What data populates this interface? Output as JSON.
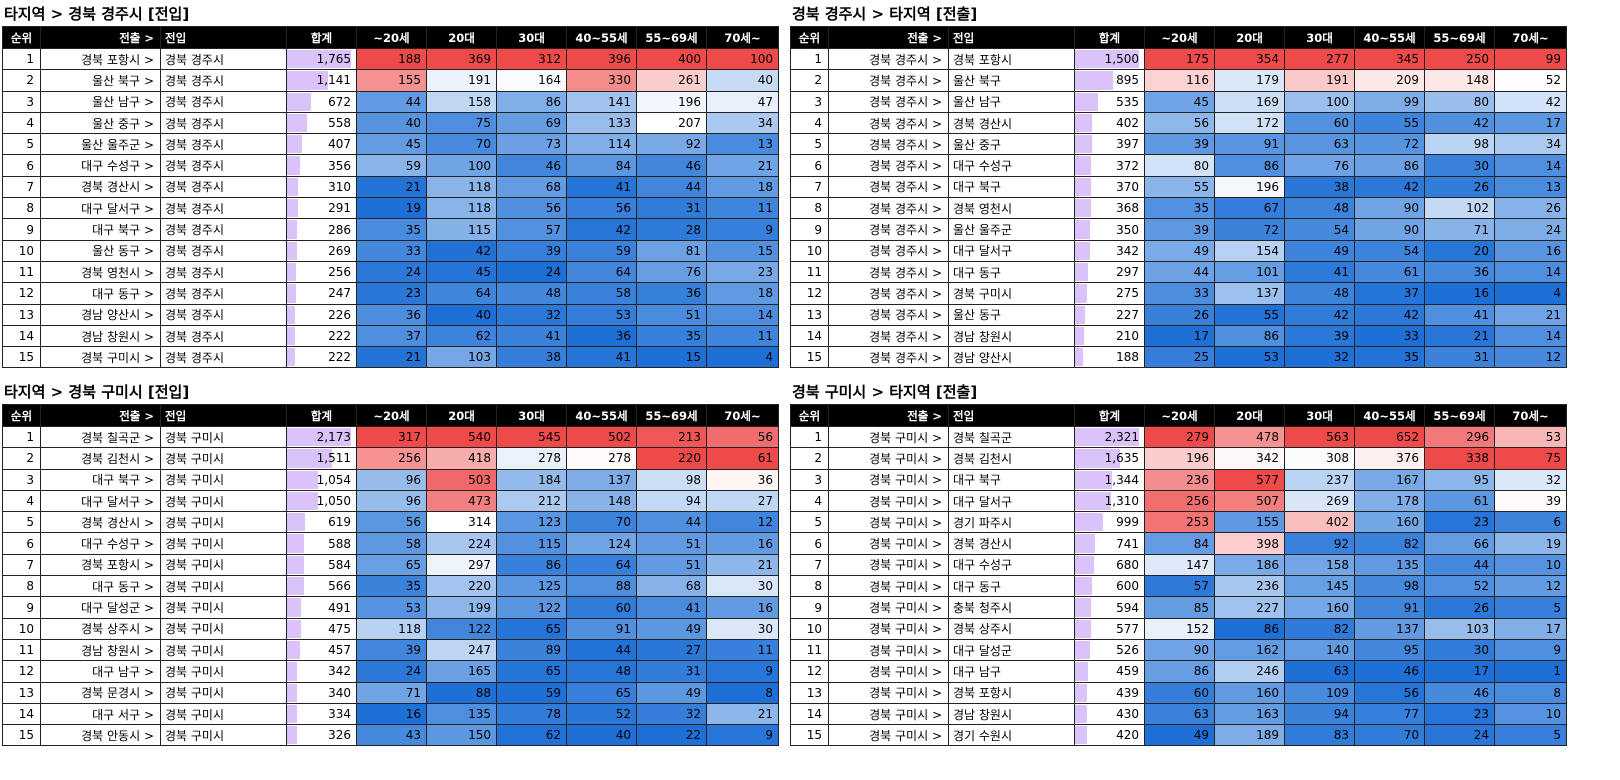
{
  "columns": {
    "rank": "순위",
    "from": "전출 >",
    "to": "전입",
    "total": "합계",
    "ages": [
      "~20세",
      "20대",
      "30대",
      "40~55세",
      "55~69세",
      "70세~"
    ]
  },
  "arrow": ">",
  "panels": [
    {
      "title": "타지역 > 경북 경주시 [전입]",
      "rows": [
        [
          "1",
          "경북 포항시",
          "경북 경주시",
          1765,
          [
            188,
            369,
            312,
            396,
            400,
            100
          ]
        ],
        [
          "2",
          "울산 북구",
          "경북 경주시",
          1141,
          [
            155,
            191,
            164,
            330,
            261,
            40
          ]
        ],
        [
          "3",
          "울산 남구",
          "경북 경주시",
          672,
          [
            44,
            158,
            86,
            141,
            196,
            47
          ]
        ],
        [
          "4",
          "울산 중구",
          "경북 경주시",
          558,
          [
            40,
            75,
            69,
            133,
            207,
            34
          ]
        ],
        [
          "5",
          "울산 울주군",
          "경북 경주시",
          407,
          [
            45,
            70,
            73,
            114,
            92,
            13
          ]
        ],
        [
          "6",
          "대구 수성구",
          "경북 경주시",
          356,
          [
            59,
            100,
            46,
            84,
            46,
            21
          ]
        ],
        [
          "7",
          "경북 경산시",
          "경북 경주시",
          310,
          [
            21,
            118,
            68,
            41,
            44,
            18
          ]
        ],
        [
          "8",
          "대구 달서구",
          "경북 경주시",
          291,
          [
            19,
            118,
            56,
            56,
            31,
            11
          ]
        ],
        [
          "9",
          "대구 북구",
          "경북 경주시",
          286,
          [
            35,
            115,
            57,
            42,
            28,
            9
          ]
        ],
        [
          "10",
          "울산 동구",
          "경북 경주시",
          269,
          [
            33,
            42,
            39,
            59,
            81,
            15
          ]
        ],
        [
          "11",
          "경북 영천시",
          "경북 경주시",
          256,
          [
            24,
            45,
            24,
            64,
            76,
            23
          ]
        ],
        [
          "12",
          "대구 동구",
          "경북 경주시",
          247,
          [
            23,
            64,
            48,
            58,
            36,
            18
          ]
        ],
        [
          "13",
          "경남 양산시",
          "경북 경주시",
          226,
          [
            36,
            40,
            32,
            53,
            51,
            14
          ]
        ],
        [
          "14",
          "경남 창원시",
          "경북 경주시",
          222,
          [
            37,
            62,
            41,
            36,
            35,
            11
          ]
        ],
        [
          "15",
          "경북 구미시",
          "경북 경주시",
          222,
          [
            21,
            103,
            38,
            41,
            15,
            4
          ]
        ]
      ]
    },
    {
      "title": "경북 경주시 > 타지역 [전출]",
      "rows": [
        [
          "1",
          "경북 경주시",
          "경북 포항시",
          1500,
          [
            175,
            354,
            277,
            345,
            250,
            99
          ]
        ],
        [
          "2",
          "경북 경주시",
          "울산 북구",
          895,
          [
            116,
            179,
            191,
            209,
            148,
            52
          ]
        ],
        [
          "3",
          "경북 경주시",
          "울산 남구",
          535,
          [
            45,
            169,
            100,
            99,
            80,
            42
          ]
        ],
        [
          "4",
          "경북 경주시",
          "경북 경산시",
          402,
          [
            56,
            172,
            60,
            55,
            42,
            17
          ]
        ],
        [
          "5",
          "경북 경주시",
          "울산 중구",
          397,
          [
            39,
            91,
            63,
            72,
            98,
            34
          ]
        ],
        [
          "6",
          "경북 경주시",
          "대구 수성구",
          372,
          [
            80,
            86,
            76,
            86,
            30,
            14
          ]
        ],
        [
          "7",
          "경북 경주시",
          "대구 북구",
          370,
          [
            55,
            196,
            38,
            42,
            26,
            13
          ]
        ],
        [
          "8",
          "경북 경주시",
          "경북 영천시",
          368,
          [
            35,
            67,
            48,
            90,
            102,
            26
          ]
        ],
        [
          "9",
          "경북 경주시",
          "울산 울주군",
          350,
          [
            39,
            72,
            54,
            90,
            71,
            24
          ]
        ],
        [
          "10",
          "경북 경주시",
          "대구 달서구",
          342,
          [
            49,
            154,
            49,
            54,
            20,
            16
          ]
        ],
        [
          "11",
          "경북 경주시",
          "대구 동구",
          297,
          [
            44,
            101,
            41,
            61,
            36,
            14
          ]
        ],
        [
          "12",
          "경북 경주시",
          "경북 구미시",
          275,
          [
            33,
            137,
            48,
            37,
            16,
            4
          ]
        ],
        [
          "13",
          "경북 경주시",
          "울산 동구",
          227,
          [
            26,
            55,
            42,
            42,
            41,
            21
          ]
        ],
        [
          "14",
          "경북 경주시",
          "경남 창원시",
          210,
          [
            17,
            86,
            39,
            33,
            21,
            14
          ]
        ],
        [
          "15",
          "경북 경주시",
          "경남 양산시",
          188,
          [
            25,
            53,
            32,
            35,
            31,
            12
          ]
        ]
      ]
    },
    {
      "title": "타지역 > 경북 구미시 [전입]",
      "rows": [
        [
          "1",
          "경북 칠곡군",
          "경북 구미시",
          2173,
          [
            317,
            540,
            545,
            502,
            213,
            56
          ]
        ],
        [
          "2",
          "경북 김천시",
          "경북 구미시",
          1511,
          [
            256,
            418,
            278,
            278,
            220,
            61
          ]
        ],
        [
          "3",
          "대구 북구",
          "경북 구미시",
          1054,
          [
            96,
            503,
            184,
            137,
            98,
            36
          ]
        ],
        [
          "4",
          "대구 달서구",
          "경북 구미시",
          1050,
          [
            96,
            473,
            212,
            148,
            94,
            27
          ]
        ],
        [
          "5",
          "경북 경산시",
          "경북 구미시",
          619,
          [
            56,
            314,
            123,
            70,
            44,
            12
          ]
        ],
        [
          "6",
          "대구 수성구",
          "경북 구미시",
          588,
          [
            58,
            224,
            115,
            124,
            51,
            16
          ]
        ],
        [
          "7",
          "경북 포항시",
          "경북 구미시",
          584,
          [
            65,
            297,
            86,
            64,
            51,
            21
          ]
        ],
        [
          "8",
          "대구 동구",
          "경북 구미시",
          566,
          [
            35,
            220,
            125,
            88,
            68,
            30
          ]
        ],
        [
          "9",
          "대구 달성군",
          "경북 구미시",
          491,
          [
            53,
            199,
            122,
            60,
            41,
            16
          ]
        ],
        [
          "10",
          "경북 상주시",
          "경북 구미시",
          475,
          [
            118,
            122,
            65,
            91,
            49,
            30
          ]
        ],
        [
          "11",
          "경남 창원시",
          "경북 구미시",
          457,
          [
            39,
            247,
            89,
            44,
            27,
            11
          ]
        ],
        [
          "12",
          "대구 남구",
          "경북 구미시",
          342,
          [
            24,
            165,
            65,
            48,
            31,
            9
          ]
        ],
        [
          "13",
          "경북 문경시",
          "경북 구미시",
          340,
          [
            71,
            88,
            59,
            65,
            49,
            8
          ]
        ],
        [
          "14",
          "대구 서구",
          "경북 구미시",
          334,
          [
            16,
            135,
            78,
            52,
            32,
            21
          ]
        ],
        [
          "15",
          "경북 안동시",
          "경북 구미시",
          326,
          [
            43,
            150,
            62,
            40,
            22,
            9
          ]
        ]
      ]
    },
    {
      "title": "경북 구미시 > 타지역 [전출]",
      "rows": [
        [
          "1",
          "경북 구미시",
          "경북 칠곡군",
          2321,
          [
            279,
            478,
            563,
            652,
            296,
            53
          ]
        ],
        [
          "2",
          "경북 구미시",
          "경북 김천시",
          1635,
          [
            196,
            342,
            308,
            376,
            338,
            75
          ]
        ],
        [
          "3",
          "경북 구미시",
          "대구 북구",
          1344,
          [
            236,
            577,
            237,
            167,
            95,
            32
          ]
        ],
        [
          "4",
          "경북 구미시",
          "대구 달서구",
          1310,
          [
            256,
            507,
            269,
            178,
            61,
            39
          ]
        ],
        [
          "5",
          "경북 구미시",
          "경기 파주시",
          999,
          [
            253,
            155,
            402,
            160,
            23,
            6
          ]
        ],
        [
          "6",
          "경북 구미시",
          "경북 경산시",
          741,
          [
            84,
            398,
            92,
            82,
            66,
            19
          ]
        ],
        [
          "7",
          "경북 구미시",
          "대구 수성구",
          680,
          [
            147,
            186,
            158,
            135,
            44,
            10
          ]
        ],
        [
          "8",
          "경북 구미시",
          "대구 동구",
          600,
          [
            57,
            236,
            145,
            98,
            52,
            12
          ]
        ],
        [
          "9",
          "경북 구미시",
          "충북 청주시",
          594,
          [
            85,
            227,
            160,
            91,
            26,
            5
          ]
        ],
        [
          "10",
          "경북 구미시",
          "경북 상주시",
          577,
          [
            152,
            86,
            82,
            137,
            103,
            17
          ]
        ],
        [
          "11",
          "경북 구미시",
          "대구 달성군",
          526,
          [
            90,
            162,
            140,
            95,
            30,
            9
          ]
        ],
        [
          "12",
          "경북 구미시",
          "대구 남구",
          459,
          [
            86,
            246,
            63,
            46,
            17,
            1
          ]
        ],
        [
          "13",
          "경북 구미시",
          "경북 포항시",
          439,
          [
            60,
            160,
            109,
            56,
            46,
            8
          ]
        ],
        [
          "14",
          "경북 구미시",
          "경남 창원시",
          430,
          [
            63,
            163,
            94,
            77,
            23,
            10
          ]
        ],
        [
          "15",
          "경북 구미시",
          "경기 수원시",
          420,
          [
            49,
            189,
            83,
            70,
            24,
            5
          ]
        ]
      ]
    }
  ]
}
